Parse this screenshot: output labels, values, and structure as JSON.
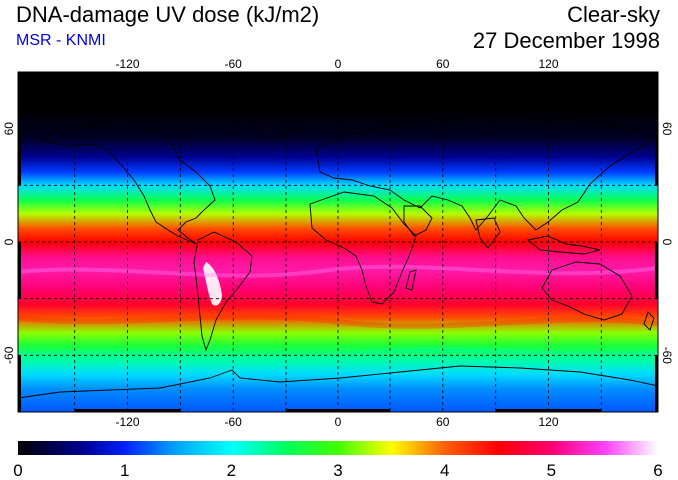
{
  "header": {
    "title": "DNA-damage UV dose (kJ/m2)",
    "source": "MSR - KNMI",
    "condition": "Clear-sky",
    "date": "27 December 1998"
  },
  "map": {
    "projection": "equirectangular",
    "lon_range": [
      -180,
      180
    ],
    "lat_range": [
      -90,
      90
    ],
    "lon_ticks": [
      -120,
      -60,
      0,
      60,
      120
    ],
    "lon_tick_labels": [
      "-120",
      "-60",
      "0",
      "60",
      "120"
    ],
    "lat_ticks": [
      60,
      0,
      -60
    ],
    "lat_tick_labels": [
      "60",
      "0",
      "-60"
    ],
    "gridlines": "dashed"
  },
  "colorbar": {
    "min": 0,
    "max": 6,
    "tick_labels": [
      "0",
      "1",
      "2",
      "3",
      "4",
      "5",
      "6"
    ],
    "stops": [
      {
        "value": 0.0,
        "color": "#000000"
      },
      {
        "value": 0.6,
        "color": "#00008f"
      },
      {
        "value": 1.0,
        "color": "#0020ff"
      },
      {
        "value": 1.5,
        "color": "#00a8ff"
      },
      {
        "value": 2.0,
        "color": "#00ffff"
      },
      {
        "value": 2.5,
        "color": "#00ff60"
      },
      {
        "value": 3.0,
        "color": "#40ff00"
      },
      {
        "value": 3.5,
        "color": "#ffff00"
      },
      {
        "value": 4.0,
        "color": "#ff6000"
      },
      {
        "value": 4.5,
        "color": "#ff0000"
      },
      {
        "value": 5.0,
        "color": "#ff0070"
      },
      {
        "value": 5.5,
        "color": "#ff40ff"
      },
      {
        "value": 6.0,
        "color": "#ffffff"
      }
    ]
  },
  "dose_by_latitude": [
    {
      "lat": 90,
      "value": 0.0
    },
    {
      "lat": 70,
      "value": 0.0
    },
    {
      "lat": 55,
      "value": 0.15
    },
    {
      "lat": 45,
      "value": 0.6
    },
    {
      "lat": 37,
      "value": 1.1
    },
    {
      "lat": 30,
      "value": 1.8
    },
    {
      "lat": 22,
      "value": 2.6
    },
    {
      "lat": 15,
      "value": 3.3
    },
    {
      "lat": 7,
      "value": 4.1
    },
    {
      "lat": 0,
      "value": 4.5
    },
    {
      "lat": -8,
      "value": 5.1
    },
    {
      "lat": -15,
      "value": 5.2
    },
    {
      "lat": -25,
      "value": 5.0
    },
    {
      "lat": -33,
      "value": 4.7
    },
    {
      "lat": -40,
      "value": 4.1
    },
    {
      "lat": -48,
      "value": 3.2
    },
    {
      "lat": -55,
      "value": 2.7
    },
    {
      "lat": -62,
      "value": 2.3
    },
    {
      "lat": -70,
      "value": 1.8
    },
    {
      "lat": -78,
      "value": 1.4
    },
    {
      "lat": -90,
      "value": 1.2
    }
  ],
  "colors": {
    "source_text": "#0000ee",
    "grid": "#000000",
    "frame": "#000000"
  }
}
